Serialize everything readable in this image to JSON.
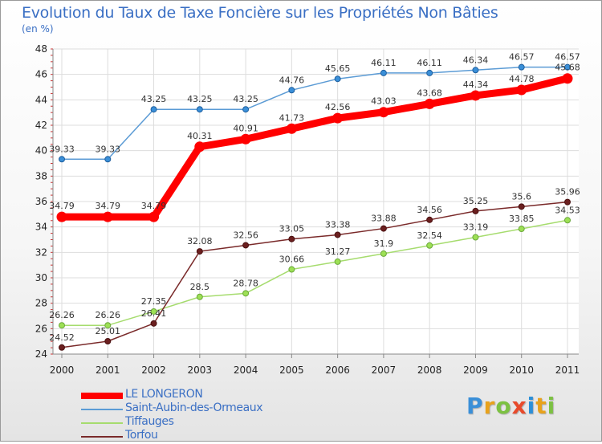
{
  "title": "Evolution du Taux de Taxe Foncière sur les Propriétés Non Bâties",
  "unit": "(en %)",
  "brand": {
    "text": "Proxiti",
    "colors": [
      "#3a8fd8",
      "#e8a21c",
      "#7cc142",
      "#e84a2b",
      "#2b8fd8",
      "#e8a21c",
      "#7cc142"
    ]
  },
  "chart_data": {
    "type": "line",
    "x": [
      "2000",
      "2001",
      "2002",
      "2003",
      "2004",
      "2005",
      "2006",
      "2007",
      "2008",
      "2009",
      "2010",
      "2011"
    ],
    "ylim": [
      24,
      48
    ],
    "yticks": [
      24,
      26,
      28,
      30,
      32,
      34,
      36,
      38,
      40,
      42,
      44,
      46,
      48
    ],
    "grid": true,
    "legend": "bottom-left",
    "series": [
      {
        "name": "LE LONGERON",
        "color": "#ff0000",
        "values": [
          34.79,
          34.79,
          34.79,
          40.31,
          40.91,
          41.73,
          42.56,
          43.03,
          43.68,
          44.34,
          44.78,
          45.68
        ],
        "labels": [
          "34.79",
          "34.79",
          "34.79",
          "40.31",
          "40.91",
          "41.73",
          "42.56",
          "43.03",
          "43.68",
          "44.34",
          "44.78",
          "45.68"
        ]
      },
      {
        "name": "Saint-Aubin-des-Ormeaux",
        "color": "#5b9bd5",
        "values": [
          39.33,
          39.33,
          43.25,
          43.25,
          43.25,
          44.76,
          45.65,
          46.11,
          46.11,
          46.34,
          46.57,
          46.57
        ],
        "labels": [
          "39.33",
          "39.33",
          "43.25",
          "43.25",
          "43.25",
          "44.76",
          "45.65",
          "46.11",
          "46.11",
          "46.34",
          "46.57",
          "46.57"
        ]
      },
      {
        "name": "Tiffauges",
        "color": "#a6dc6e",
        "values": [
          26.26,
          26.26,
          27.35,
          28.5,
          28.78,
          30.66,
          31.27,
          31.9,
          32.54,
          33.19,
          33.85,
          34.53
        ],
        "labels": [
          "26.26",
          "26.26",
          "27.35",
          "28.5",
          "28.78",
          "30.66",
          "31.27",
          "31.9",
          "32.54",
          "33.19",
          "33.85",
          "34.53"
        ]
      },
      {
        "name": "Torfou",
        "color": "#7a2a2a",
        "values": [
          24.52,
          25.01,
          26.41,
          32.08,
          32.56,
          33.05,
          33.38,
          33.88,
          34.56,
          35.25,
          35.6,
          35.96
        ],
        "labels": [
          "24.52",
          "25.01",
          "26.41",
          "32.08",
          "32.56",
          "33.05",
          "33.38",
          "33.88",
          "34.56",
          "35.25",
          "35.6",
          "35.96"
        ]
      }
    ]
  }
}
